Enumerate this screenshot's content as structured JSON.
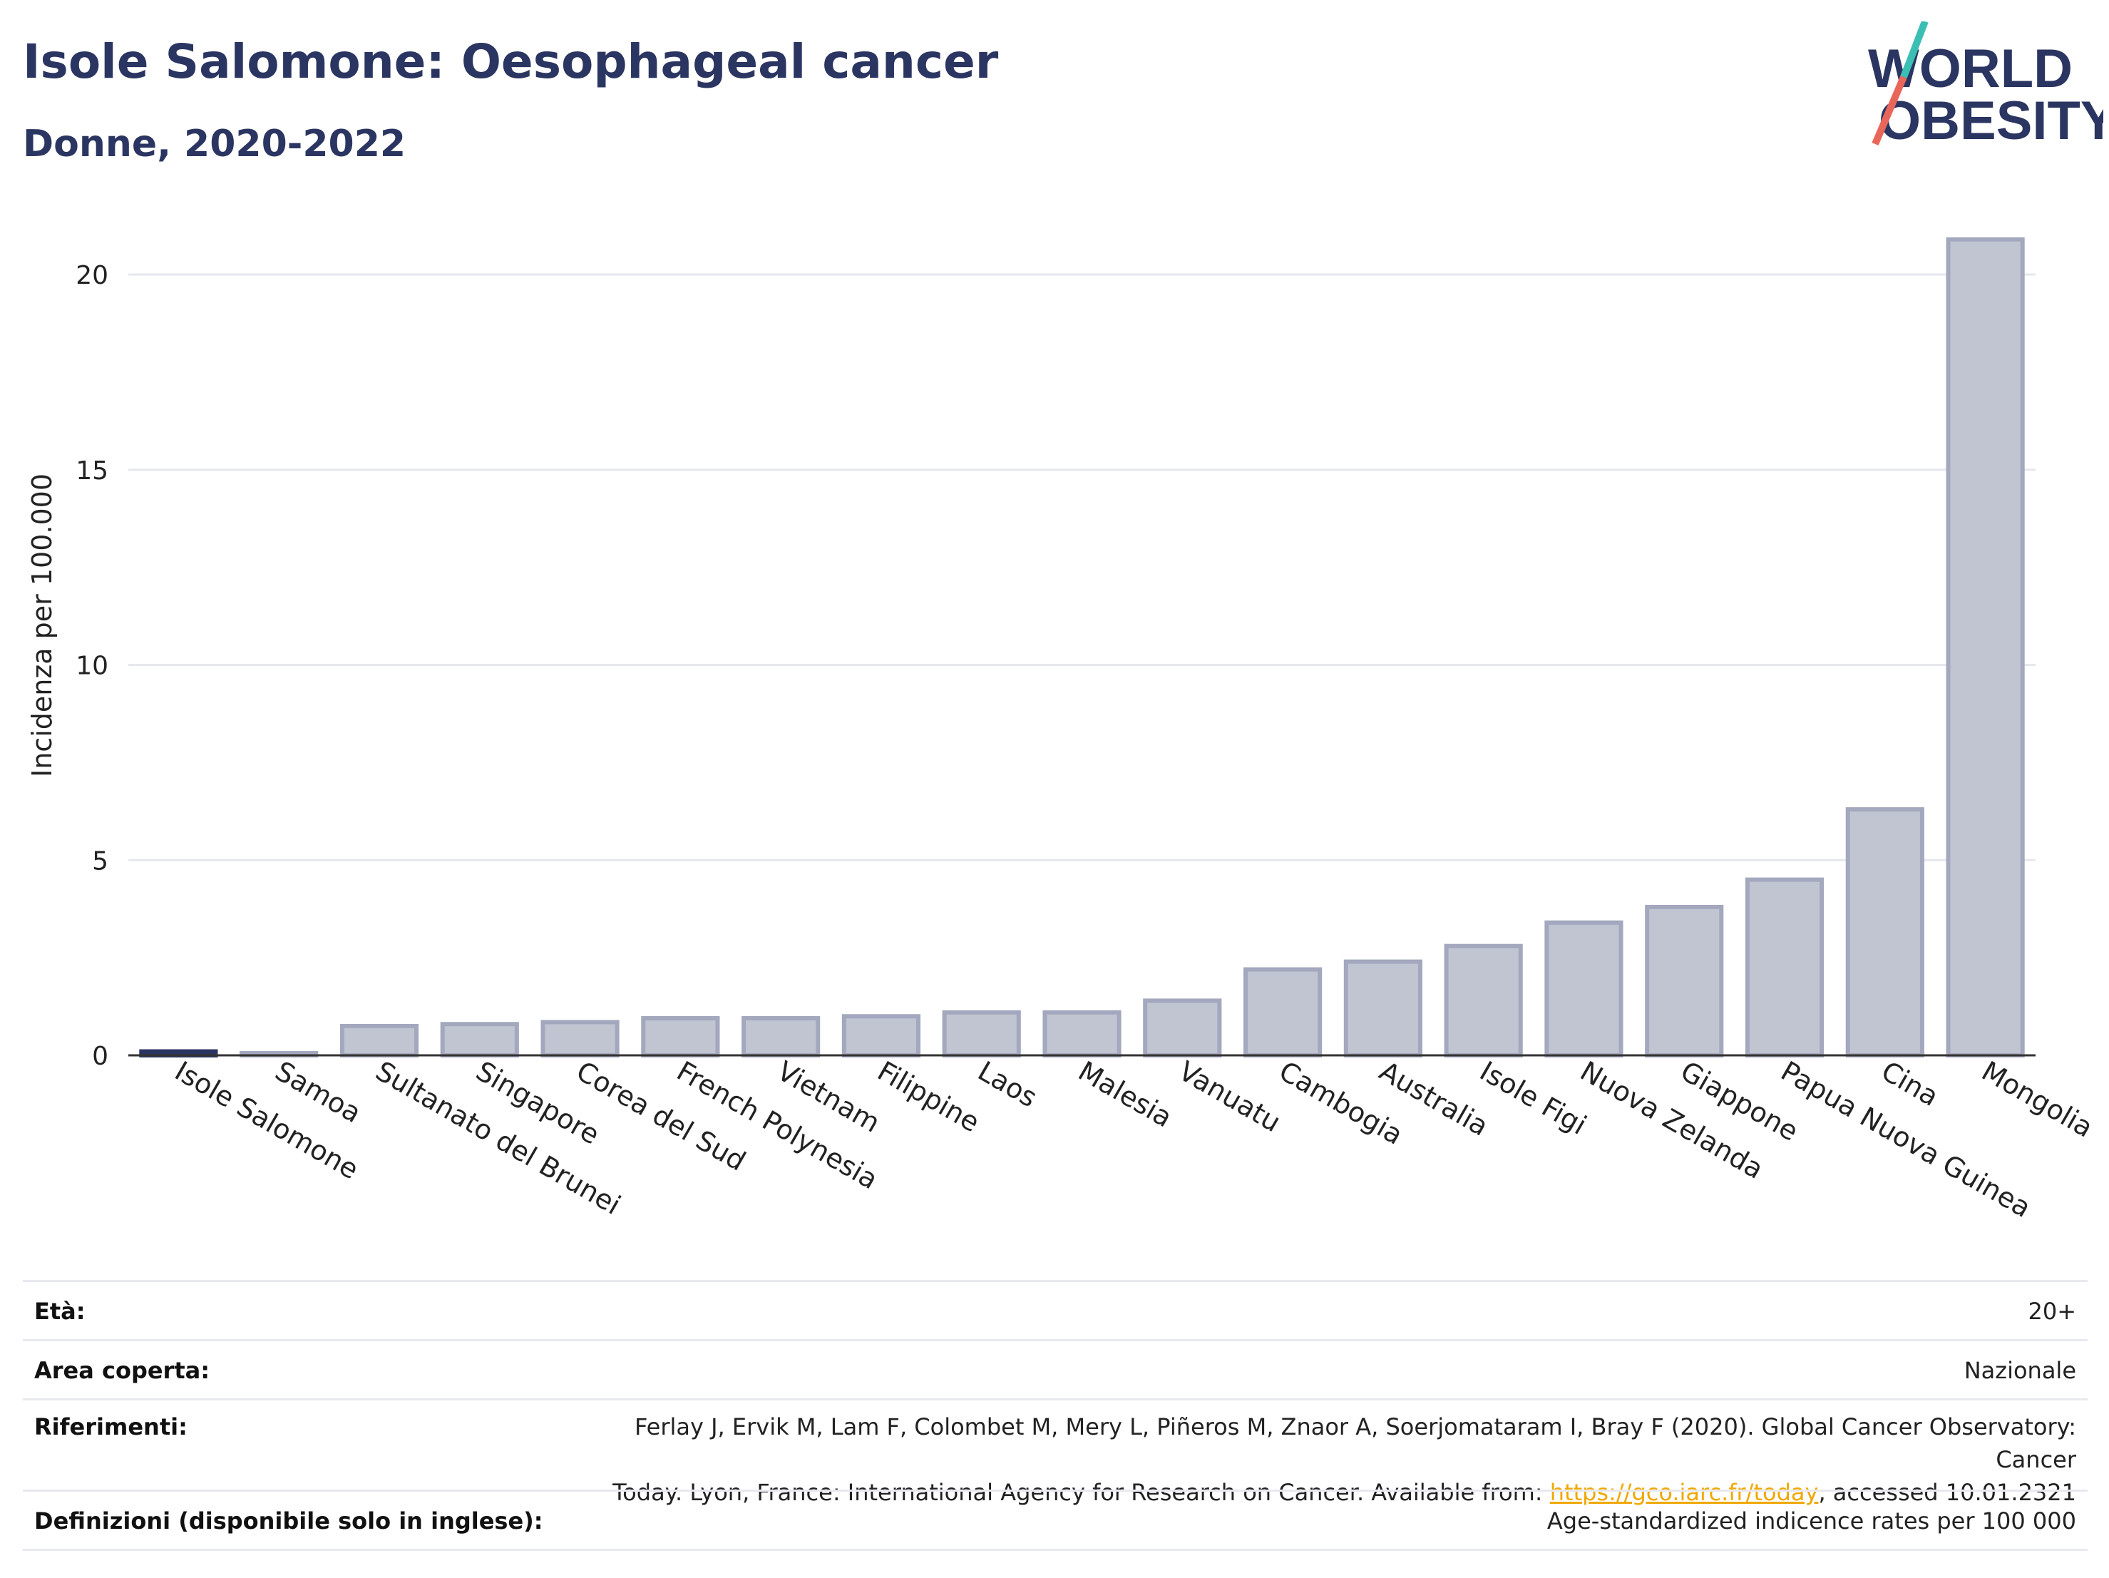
{
  "header": {
    "title": "Isole Salomone: Oesophageal cancer",
    "subtitle": "Donne, 2020-2022"
  },
  "logo": {
    "line1": "WORLD",
    "line2": "OBESITY",
    "accent": "#e8675a",
    "accent2": "#3bbfb5",
    "color": "#2b3561"
  },
  "chart_data": {
    "type": "bar",
    "categories": [
      "Isole Salomone",
      "Samoa",
      "Sultanato del Brunei",
      "Singapore",
      "Corea del Sud",
      "French Polynesia",
      "Vietnam",
      "Filippine",
      "Laos",
      "Malesia",
      "Vanuatu",
      "Cambogia",
      "Australia",
      "Isole Figi",
      "Nuova Zelanda",
      "Giappone",
      "Papua Nuova Guinea",
      "Cina",
      "Mongolia"
    ],
    "values": [
      0.1,
      0.05,
      0.75,
      0.8,
      0.85,
      0.95,
      0.95,
      1.0,
      1.1,
      1.1,
      1.4,
      2.2,
      2.4,
      2.8,
      3.4,
      3.8,
      4.5,
      6.3,
      20.9
    ],
    "highlight_index": 0,
    "highlight_color": "#2b3561",
    "bar_color": "#c1c4d1",
    "bar_edge_color": "#a3a8be",
    "ylabel": "Incidenza per 100.000",
    "ylim": [
      0,
      22
    ],
    "yticks": [
      0,
      5,
      10,
      15,
      20
    ],
    "grid": true
  },
  "info": {
    "age_label": "Età:",
    "age_value": "20+",
    "area_label": "Area coperta:",
    "area_value": "Nazionale",
    "refs_label": "Riferimenti:",
    "refs_line1": "Ferlay J, Ervik M, Lam F, Colombet M, Mery L, Piñeros M, Znaor A, Soerjomataram I, Bray F (2020). Global Cancer Observatory: Cancer",
    "refs_line2_pre": "Today. Lyon, France: International Agency for Research on Cancer. Available from: ",
    "refs_link": "https://gco.iarc.fr/today",
    "refs_line2_post": ", accessed 10.01.2321",
    "def_label": "Definizioni (disponibile solo in inglese):",
    "def_value": "Age-standardized indicence rates per 100 000"
  }
}
